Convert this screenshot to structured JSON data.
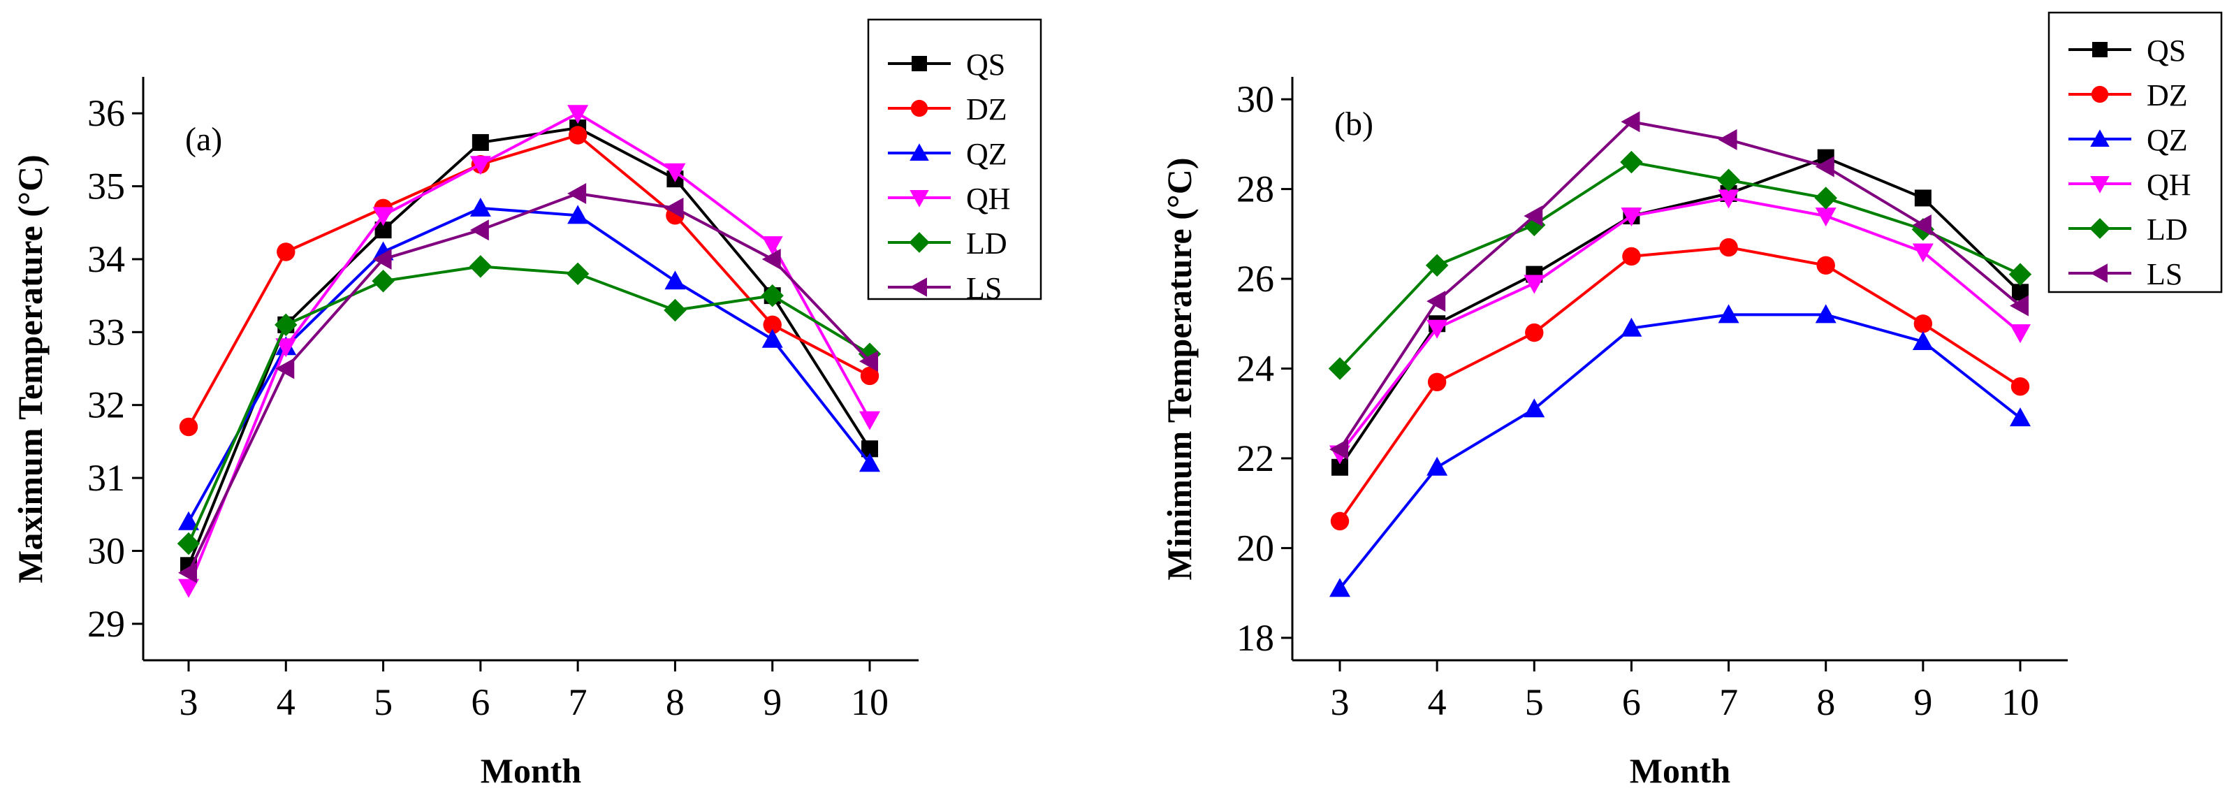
{
  "chart_data": [
    {
      "type": "line",
      "panel_label": "(a)",
      "title": "",
      "xlabel": "Month",
      "ylabel": "Maximum Temperature (°C)",
      "categories": [
        "3",
        "4",
        "5",
        "6",
        "7",
        "8",
        "9",
        "10"
      ],
      "x": [
        3,
        4,
        5,
        6,
        7,
        8,
        9,
        10
      ],
      "ylim": [
        28.5,
        36.5
      ],
      "yticks": [
        29,
        30,
        31,
        32,
        33,
        34,
        35,
        36
      ],
      "grid": false,
      "legend_position": "top-right",
      "series": [
        {
          "name": "QS",
          "color": "#000000",
          "marker": "square",
          "values": [
            29.8,
            33.1,
            34.4,
            35.6,
            35.8,
            35.1,
            33.5,
            31.4
          ]
        },
        {
          "name": "DZ",
          "color": "#ff0000",
          "marker": "circle",
          "values": [
            31.7,
            34.1,
            34.7,
            35.3,
            35.7,
            34.6,
            33.1,
            32.4
          ]
        },
        {
          "name": "QZ",
          "color": "#0000ff",
          "marker": "triangle-up",
          "values": [
            30.4,
            32.8,
            34.1,
            34.7,
            34.6,
            33.7,
            32.9,
            31.2
          ]
        },
        {
          "name": "QH",
          "color": "#ff00ff",
          "marker": "triangle-down",
          "values": [
            29.5,
            32.8,
            34.6,
            35.3,
            36.0,
            35.2,
            34.2,
            31.8
          ]
        },
        {
          "name": "LD",
          "color": "#008000",
          "marker": "diamond",
          "values": [
            30.1,
            33.1,
            33.7,
            33.9,
            33.8,
            33.3,
            33.5,
            32.7
          ]
        },
        {
          "name": "LS",
          "color": "#800080",
          "marker": "triangle-left",
          "values": [
            29.7,
            32.5,
            34.0,
            34.4,
            34.9,
            34.7,
            34.0,
            32.6
          ]
        }
      ]
    },
    {
      "type": "line",
      "panel_label": "(b)",
      "title": "",
      "xlabel": "Month",
      "ylabel": "Minimum Temperature (°C)",
      "categories": [
        "3",
        "4",
        "5",
        "6",
        "7",
        "8",
        "9",
        "10"
      ],
      "x": [
        3,
        4,
        5,
        6,
        7,
        8,
        9,
        10
      ],
      "ylim": [
        17.5,
        30.5
      ],
      "yticks": [
        18,
        20,
        22,
        24,
        26,
        28,
        30
      ],
      "grid": false,
      "legend_position": "top-right",
      "series": [
        {
          "name": "QS",
          "color": "#000000",
          "marker": "square",
          "values": [
            21.8,
            25.0,
            26.1,
            27.4,
            27.9,
            28.7,
            27.8,
            25.7
          ]
        },
        {
          "name": "DZ",
          "color": "#ff0000",
          "marker": "circle",
          "values": [
            20.6,
            23.7,
            24.8,
            26.5,
            26.7,
            26.3,
            25.0,
            23.6
          ]
        },
        {
          "name": "QZ",
          "color": "#0000ff",
          "marker": "triangle-up",
          "values": [
            19.1,
            21.8,
            23.1,
            24.9,
            25.2,
            25.2,
            24.6,
            22.9
          ]
        },
        {
          "name": "QH",
          "color": "#ff00ff",
          "marker": "triangle-down",
          "values": [
            22.1,
            24.9,
            25.9,
            27.4,
            27.8,
            27.4,
            26.6,
            24.8
          ]
        },
        {
          "name": "LD",
          "color": "#008000",
          "marker": "diamond",
          "values": [
            24.0,
            26.3,
            27.2,
            28.6,
            28.2,
            27.8,
            27.1,
            26.1
          ]
        },
        {
          "name": "LS",
          "color": "#800080",
          "marker": "triangle-left",
          "values": [
            22.2,
            25.5,
            27.4,
            29.5,
            29.1,
            28.5,
            27.2,
            25.4
          ]
        }
      ]
    }
  ]
}
